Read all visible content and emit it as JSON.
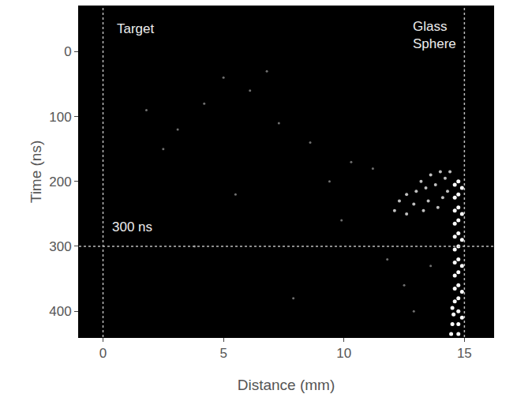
{
  "chart_data": {
    "type": "scatter",
    "x_label": "Distance (mm)",
    "y_label": "Time (ns)",
    "xlim": [
      -1,
      16.2
    ],
    "ylim": [
      440,
      -70
    ],
    "xticks": [
      0,
      5,
      10,
      15
    ],
    "yticks": [
      0,
      100,
      200,
      300,
      400
    ],
    "grid": false,
    "vlines": [
      0,
      15
    ],
    "hlines": [
      300
    ],
    "annotations": [
      {
        "text": "Target",
        "x": 0.5,
        "y": -35
      },
      {
        "text": "Glass Sphere",
        "x": 12.8,
        "y": -25
      },
      {
        "text": "300 ns",
        "x": 0.3,
        "y": 270
      }
    ],
    "series": [
      {
        "color": "#ffffff",
        "x": [
          14.75,
          14.75,
          14.75,
          14.75,
          14.75,
          14.75,
          14.75,
          14.75,
          14.75,
          14.75,
          14.75,
          14.75,
          14.75,
          14.6,
          14.6,
          14.6,
          14.6,
          14.6,
          14.6,
          14.6,
          14.6,
          14.6,
          14.6,
          14.55,
          14.5,
          14.45,
          14.5,
          14.9,
          14.9,
          14.9,
          14.9,
          14.9,
          14.9
        ],
        "y": [
          200,
          220,
          240,
          260,
          280,
          300,
          320,
          340,
          360,
          380,
          400,
          420,
          435,
          205,
          225,
          245,
          265,
          285,
          305,
          325,
          345,
          365,
          385,
          405,
          420,
          435,
          395,
          210,
          250,
          290,
          330,
          370,
          410
        ]
      },
      {
        "color": "#bfbfbf",
        "x": [
          14.2,
          14.0,
          13.6,
          13.2,
          13.8,
          13.4,
          13.0,
          12.6,
          12.3,
          12.9,
          13.5,
          14.1,
          12.1,
          12.6,
          13.3,
          13.9,
          14.3,
          14.4
        ],
        "y": [
          195,
          185,
          190,
          200,
          205,
          210,
          215,
          220,
          230,
          235,
          230,
          225,
          245,
          250,
          245,
          240,
          215,
          185
        ]
      },
      {
        "color": "#707070",
        "x": [
          5.0,
          4.2,
          6.1,
          3.1,
          2.5,
          7.3,
          10.3,
          8.6,
          9.4,
          11.2,
          6.8,
          5.5,
          1.8,
          11.8,
          12.5,
          9.9,
          3.8,
          7.9,
          13.6,
          12.9
        ],
        "y": [
          40,
          80,
          60,
          120,
          150,
          110,
          170,
          140,
          200,
          180,
          30,
          220,
          90,
          320,
          360,
          260,
          300,
          380,
          330,
          400
        ]
      }
    ]
  }
}
